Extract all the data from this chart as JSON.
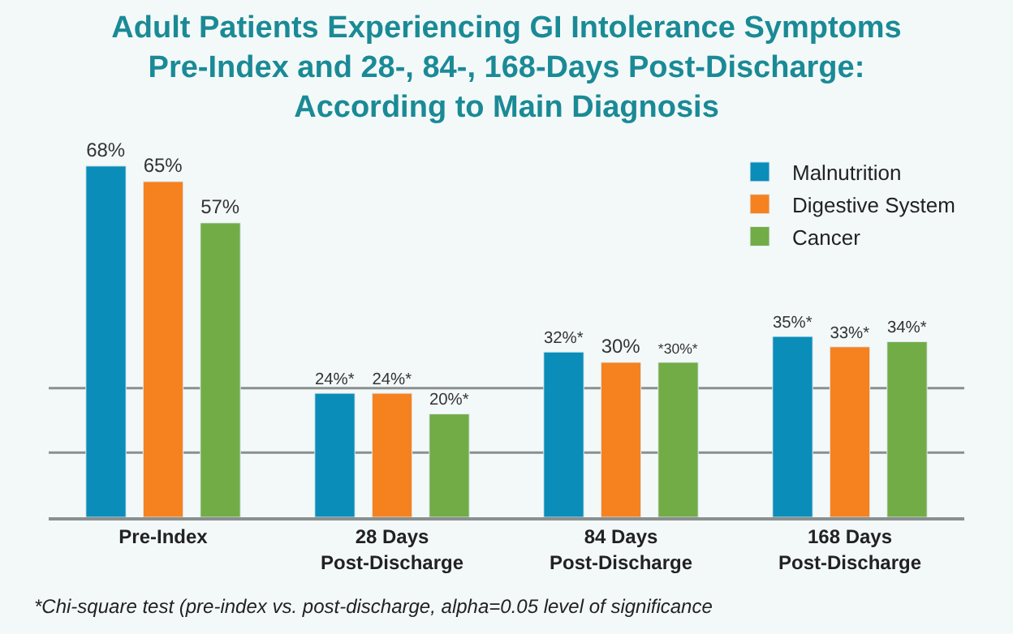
{
  "chart_data": {
    "type": "bar",
    "title": "Adult Patients Experiencing GI Intolerance Symptoms\nPre-Index and 28-, 84-, 168-Days Post-Discharge:\nAccording to Main Diagnosis",
    "categories": [
      "Pre-Index",
      "28 Days Post-Discharge",
      "84 Days Post-Discharge",
      "168 Days Post-Discharge"
    ],
    "series": [
      {
        "name": "Malnutrition",
        "color": "#0a8db8",
        "values": [
          68,
          24,
          32,
          35
        ],
        "value_labels": [
          "68%",
          "24%*",
          "32%*",
          "35%*"
        ]
      },
      {
        "name": "Digestive System",
        "color": "#f5821f",
        "values": [
          65,
          24,
          30,
          33
        ],
        "value_labels": [
          "65%",
          "24%*",
          "30%",
          "33%*"
        ]
      },
      {
        "name": "Cancer",
        "color": "#72ac46",
        "values": [
          57,
          20,
          30,
          34
        ],
        "value_labels": [
          "57%",
          "20%*",
          "*30%*",
          "34%*"
        ]
      }
    ],
    "ref_lines": [
      {
        "axis": "y",
        "value": 12.5,
        "color": "#8a8f8f"
      },
      {
        "axis": "y",
        "value": 25,
        "color": "#8a8f8f"
      }
    ],
    "legend": "top right",
    "annotations": [
      "*Chi-square test (pre-index vs. post-discharge, alpha=0.05 level of significance"
    ]
  }
}
